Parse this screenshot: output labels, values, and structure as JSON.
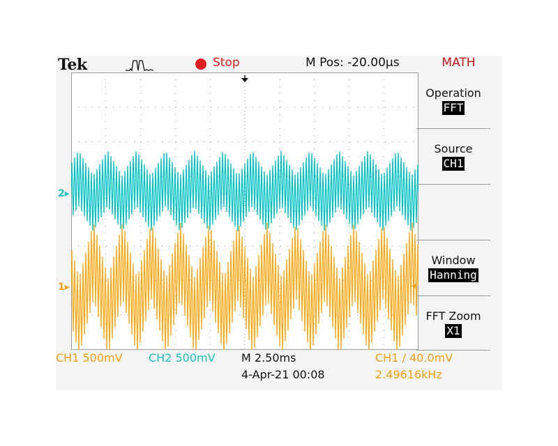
{
  "colors": {
    "ch1": "#f7a817",
    "ch2": "#00c0c0",
    "stop": "#e02020",
    "menu_title": "#c81414"
  },
  "header": {
    "brand": "Tek",
    "acquire_icon": "pulse-waveform-icon",
    "run_state": "Stop",
    "mpos": "M Pos: -20.00µs",
    "menu_title": "MATH"
  },
  "side_menu": {
    "items": [
      {
        "label": "Operation",
        "value": "FFT"
      },
      {
        "label": "Source",
        "value": "CH1"
      },
      {
        "label": "",
        "value": ""
      },
      {
        "label": "Window",
        "value": "Hanning"
      },
      {
        "label": "FFT Zoom",
        "value": "X1"
      }
    ]
  },
  "markers": {
    "ch2": "2",
    "ch1": "1"
  },
  "bottom": {
    "ch1_scale": "CH1  500mV",
    "ch2_scale": "CH2  500mV",
    "timebase": "M 2.50ms",
    "date": "4-Apr-21 00:08",
    "trigger": "CH1 ∕ 40.0mV",
    "frequency": "2.49616kHz"
  }
}
